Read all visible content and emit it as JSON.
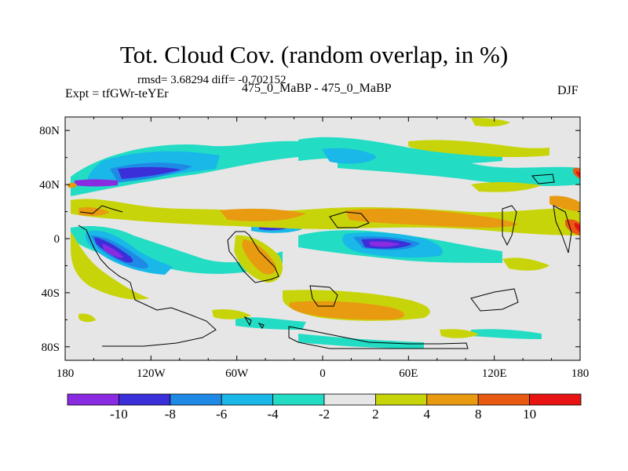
{
  "header": {
    "title": "Tot. Cloud Cov. (random overlap, in %)",
    "stats": "rmsd= 3.68294 diff= -0.702152",
    "expt": "Expt = tfGWr-teYEr",
    "center_label": "475_0_MaBP - 475_0_MaBP",
    "season": "DJF"
  },
  "chart_data": {
    "type": "heatmap",
    "title": "Tot. Cloud Cov. (random overlap, in %)",
    "subtitle": "475_0_MaBP - 475_0_MaBP",
    "x_ticks": [
      "180",
      "120W",
      "60W",
      "0",
      "60E",
      "120E",
      "180"
    ],
    "x_values": [
      -180,
      -120,
      -60,
      0,
      60,
      120,
      180
    ],
    "y_ticks": [
      "80N",
      "40N",
      "0",
      "40S",
      "80S"
    ],
    "y_values": [
      80,
      40,
      0,
      -40,
      -80
    ],
    "xlim": [
      -180,
      180
    ],
    "ylim": [
      -90,
      90
    ],
    "colorbar": {
      "labels": [
        "-10",
        "-8",
        "-6",
        "-4",
        "-2",
        "2",
        "4",
        "8",
        "10"
      ],
      "levels": [
        -10,
        -8,
        -6,
        -4,
        -2,
        2,
        4,
        8,
        10
      ],
      "colors": [
        "#8a2be2",
        "#3a2fd8",
        "#1e8ae6",
        "#19b8e8",
        "#22dcc4",
        "#e6e6e6",
        "#c8d40a",
        "#e89a10",
        "#e85a12",
        "#e81414"
      ]
    },
    "features": [
      {
        "name": "north-pacific-negative-band",
        "lon": -130,
        "lat": 35,
        "value": -9
      },
      {
        "name": "south-pacific-negative-core",
        "lon": -140,
        "lat": -15,
        "value": -9
      },
      {
        "name": "equatorial-indian-ocean-negative-core",
        "lon": 45,
        "lat": -10,
        "value": -9
      },
      {
        "name": "equatorial-atlantic-negative",
        "lon": -20,
        "lat": 0,
        "value": -7
      },
      {
        "name": "equatorial-positive-band",
        "lon": 40,
        "lat": 10,
        "value": 5
      },
      {
        "name": "southern-ocean-positive",
        "lon": 10,
        "lat": -55,
        "value": 5
      },
      {
        "name": "western-pacific-positive",
        "lon": 170,
        "lat": 0,
        "value": 9
      }
    ]
  }
}
